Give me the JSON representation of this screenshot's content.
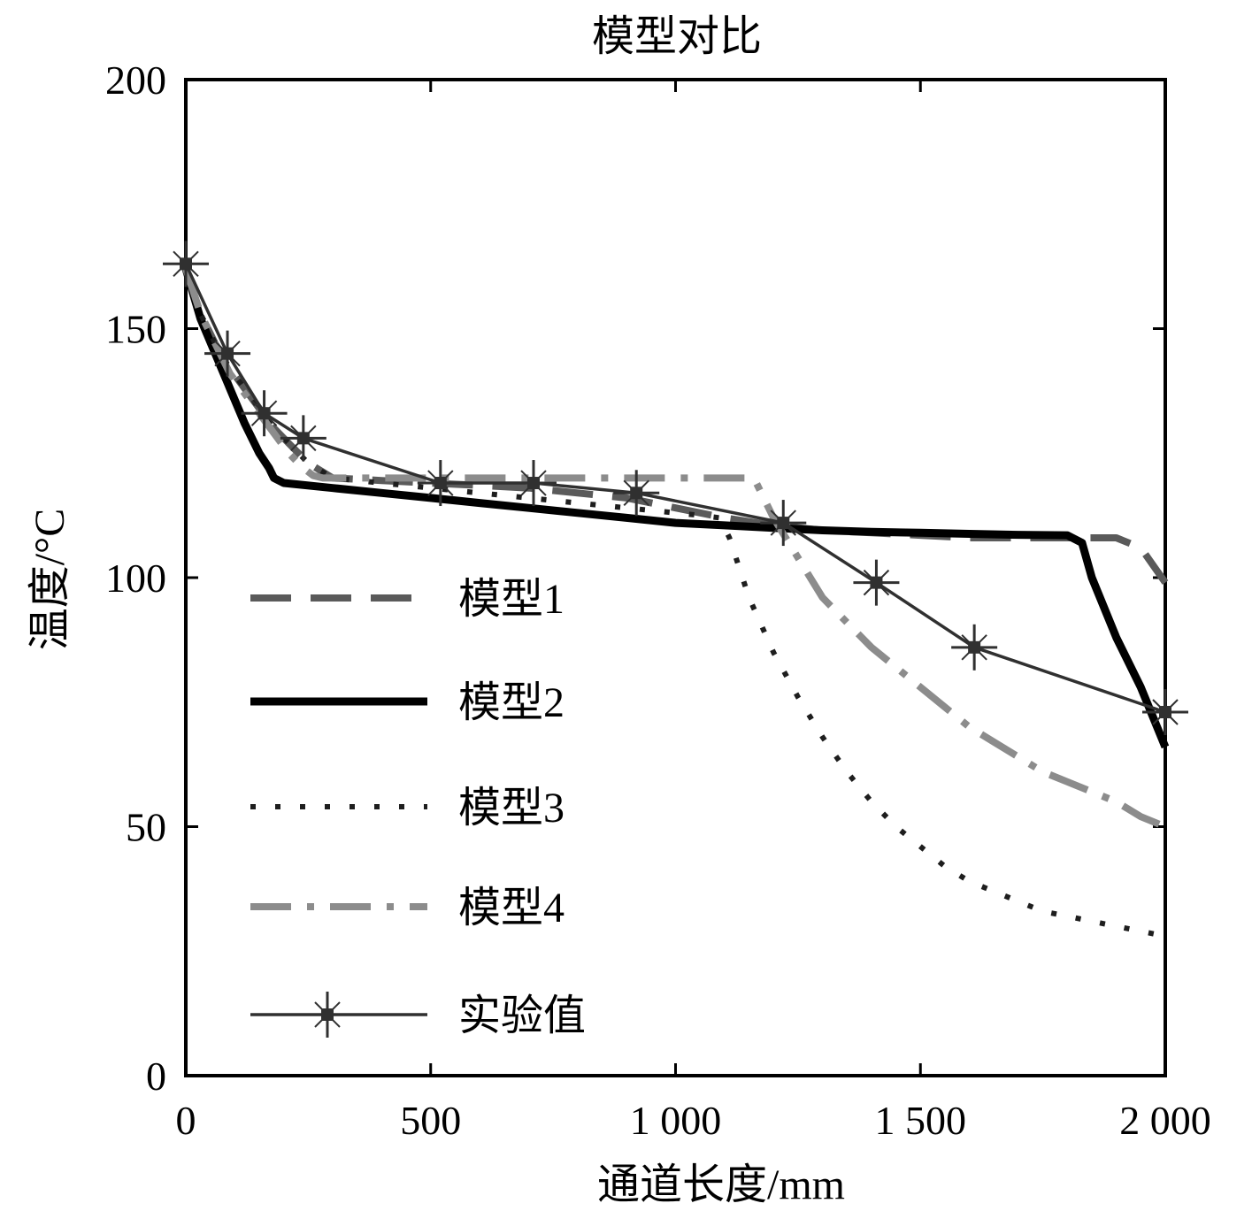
{
  "chart_data": {
    "type": "line",
    "title": "模型对比",
    "xlabel": "通道长度/mm",
    "ylabel": "温度/°C",
    "xlim": [
      0,
      2000
    ],
    "ylim": [
      0,
      200
    ],
    "xticks": [
      0,
      500,
      1000,
      1500,
      2000
    ],
    "xtick_labels": [
      "0",
      "500",
      "1 000",
      "1 500",
      "2 000"
    ],
    "yticks": [
      0,
      50,
      100,
      150,
      200
    ],
    "ytick_labels": [
      "0",
      "50",
      "100",
      "150",
      "200"
    ],
    "grid": false,
    "legend_position": "lower-left",
    "series": [
      {
        "name": "模型1",
        "style": "dashed",
        "color": "#5a5a5a",
        "x": [
          0,
          30,
          60,
          90,
          120,
          150,
          180,
          210,
          250,
          300,
          400,
          500,
          600,
          700,
          800,
          900,
          1000,
          1100,
          1200,
          1300,
          1400,
          1500,
          1600,
          1700,
          1800,
          1850,
          1900,
          1950,
          2000
        ],
        "y": [
          162,
          153,
          147,
          142,
          138,
          134,
          130,
          127,
          123,
          120,
          119.5,
          119,
          118.5,
          118,
          117,
          116,
          114,
          112,
          110.5,
          109.5,
          109,
          108.5,
          108,
          108,
          108,
          108,
          108,
          106,
          99
        ]
      },
      {
        "name": "模型2",
        "style": "solid-thick",
        "color": "#000000",
        "x": [
          0,
          30,
          60,
          90,
          120,
          150,
          170,
          180,
          200,
          300,
          400,
          500,
          600,
          700,
          800,
          900,
          1000,
          1100,
          1200,
          1300,
          1400,
          1500,
          1600,
          1700,
          1800,
          1830,
          1850,
          1900,
          1950,
          2000
        ],
        "y": [
          162,
          152,
          145,
          138,
          131,
          125,
          122,
          120,
          119,
          118,
          117,
          116,
          115,
          114,
          113,
          112,
          111,
          110.5,
          110,
          109.5,
          109.2,
          109,
          108.8,
          108.6,
          108.5,
          107,
          100,
          88,
          78,
          66
        ]
      },
      {
        "name": "模型3",
        "style": "dotted",
        "color": "#1e1e1e",
        "x": [
          0,
          30,
          60,
          90,
          120,
          150,
          180,
          210,
          250,
          300,
          400,
          500,
          600,
          700,
          800,
          900,
          1000,
          1050,
          1090,
          1110,
          1150,
          1200,
          1250,
          1300,
          1350,
          1400,
          1450,
          1500,
          1550,
          1600,
          1650,
          1700,
          1750,
          1800,
          1850,
          1900,
          1950,
          2000
        ],
        "y": [
          162,
          153,
          147,
          142,
          138,
          134,
          130,
          127,
          123,
          120,
          119,
          118,
          117,
          116,
          115,
          114,
          113,
          112.5,
          112,
          108,
          96,
          85,
          76,
          68,
          61,
          55,
          50,
          46,
          42,
          39,
          37,
          35,
          33,
          32,
          31,
          30,
          29,
          28
        ]
      },
      {
        "name": "模型4",
        "style": "dash-dot",
        "color": "#8c8c8c",
        "x": [
          0,
          30,
          60,
          90,
          120,
          150,
          180,
          210,
          240,
          260,
          280,
          300,
          400,
          500,
          600,
          700,
          800,
          900,
          1000,
          1100,
          1160,
          1200,
          1250,
          1300,
          1350,
          1400,
          1450,
          1500,
          1550,
          1600,
          1650,
          1700,
          1750,
          1800,
          1850,
          1900,
          1950,
          2000
        ],
        "y": [
          162,
          153,
          147,
          141,
          137,
          133,
          129,
          125,
          122,
          120.5,
          120,
          120,
          120,
          120,
          120,
          120,
          120,
          120,
          120,
          120,
          120,
          112,
          104,
          96,
          91,
          86,
          82,
          78,
          74,
          70,
          67,
          64,
          61,
          59,
          57,
          55,
          52,
          50
        ]
      },
      {
        "name": "实验值",
        "style": "solid-marker",
        "color": "#303030",
        "x": [
          0,
          85,
          160,
          240,
          520,
          710,
          920,
          1220,
          1410,
          1610,
          2000
        ],
        "y": [
          163,
          145,
          133,
          128,
          119,
          119,
          117,
          111,
          99,
          86,
          73
        ]
      }
    ]
  }
}
